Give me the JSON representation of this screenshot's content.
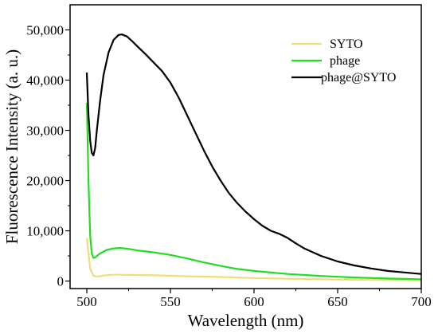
{
  "chart_data": {
    "type": "line",
    "xlabel": "Wavelength (nm)",
    "ylabel": "Fluorescence Intensity (a. u.)",
    "xlim": [
      490,
      700
    ],
    "ylim": [
      -1500,
      55000
    ],
    "xticks": [
      500,
      550,
      600,
      650,
      700
    ],
    "xtick_labels": [
      "500",
      "550",
      "600",
      "650",
      "700"
    ],
    "yticks": [
      0,
      10000,
      20000,
      30000,
      40000,
      50000
    ],
    "ytick_labels": [
      "0",
      "10,000",
      "20,000",
      "30,000",
      "40,000",
      "50,000"
    ],
    "grid": false,
    "legend": "top-right",
    "series": [
      {
        "name": "SYTO",
        "color": "#f0dc78",
        "x": [
          500,
          502,
          504,
          507,
          510,
          515,
          520,
          530,
          540,
          550,
          560,
          580,
          600,
          620,
          650,
          680,
          700
        ],
        "y": [
          8600,
          2500,
          1000,
          900,
          1100,
          1250,
          1250,
          1200,
          1150,
          1050,
          950,
          800,
          600,
          450,
          300,
          200,
          150
        ]
      },
      {
        "name": "phage",
        "color": "#22dd22",
        "x": [
          500,
          501,
          502,
          503,
          504,
          505,
          508,
          512,
          516,
          520,
          525,
          530,
          540,
          550,
          560,
          570,
          580,
          590,
          600,
          620,
          640,
          660,
          680,
          700
        ],
        "y": [
          35500,
          20000,
          9000,
          5500,
          4600,
          4700,
          5500,
          6200,
          6500,
          6600,
          6400,
          6100,
          5700,
          5200,
          4500,
          3700,
          3000,
          2400,
          2000,
          1400,
          1000,
          700,
          500,
          350
        ]
      },
      {
        "name": "phage@SYTO",
        "color": "#000000",
        "x": [
          500,
          501,
          502,
          503,
          504,
          505,
          506,
          508,
          510,
          513,
          516,
          519,
          521,
          524,
          527,
          530,
          535,
          540,
          545,
          550,
          555,
          560,
          565,
          570,
          575,
          580,
          585,
          590,
          595,
          600,
          605,
          610,
          615,
          620,
          625,
          630,
          640,
          650,
          660,
          670,
          680,
          690,
          700
        ],
        "y": [
          41500,
          33000,
          28000,
          25500,
          25000,
          26500,
          30000,
          36000,
          41000,
          45500,
          48000,
          49000,
          49100,
          48700,
          47800,
          46800,
          45200,
          43500,
          41800,
          39500,
          36500,
          33000,
          29500,
          26000,
          22800,
          20000,
          17500,
          15500,
          13800,
          12300,
          11000,
          10000,
          9400,
          8600,
          7500,
          6500,
          5000,
          3900,
          3100,
          2500,
          2000,
          1700,
          1400
        ]
      }
    ]
  }
}
